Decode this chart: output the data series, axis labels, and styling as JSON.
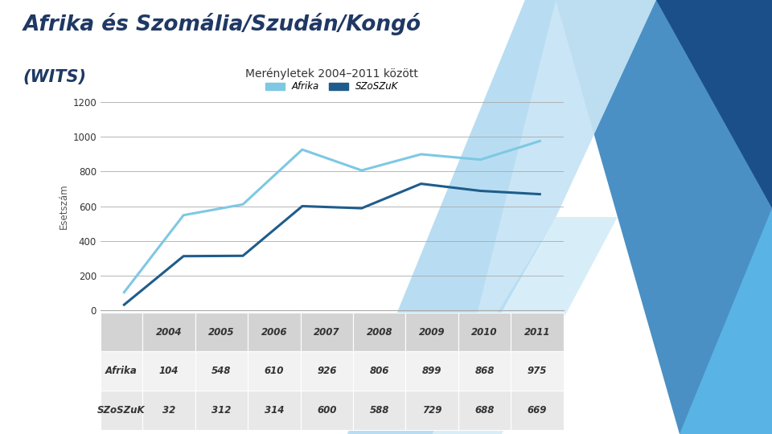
{
  "title_line1": "Afrika és Szomália/Szudán/Kongó",
  "title_line2": "(WITS)",
  "chart_title": "Merényletek 2004–2011 között",
  "ylabel": "Esetszám",
  "years": [
    2004,
    2005,
    2006,
    2007,
    2008,
    2009,
    2010,
    2011
  ],
  "africa_values": [
    104,
    548,
    610,
    926,
    806,
    899,
    868,
    975
  ],
  "szoszuk_values": [
    32,
    312,
    314,
    600,
    588,
    729,
    688,
    669
  ],
  "africa_color": "#7EC8E3",
  "szoszuk_color": "#1F5C8B",
  "ylim": [
    0,
    1200
  ],
  "yticks": [
    0,
    200,
    400,
    600,
    800,
    1000,
    1200
  ],
  "legend_africa": "Afrika",
  "legend_szoszuk": "SZoSZuK",
  "table_row1_label": "Afrika",
  "table_row2_label": "SZoSZuK",
  "background_color": "#ffffff",
  "title_color": "#1F3864",
  "axis_label_color": "#555555",
  "grid_color": "#AAAAAA"
}
